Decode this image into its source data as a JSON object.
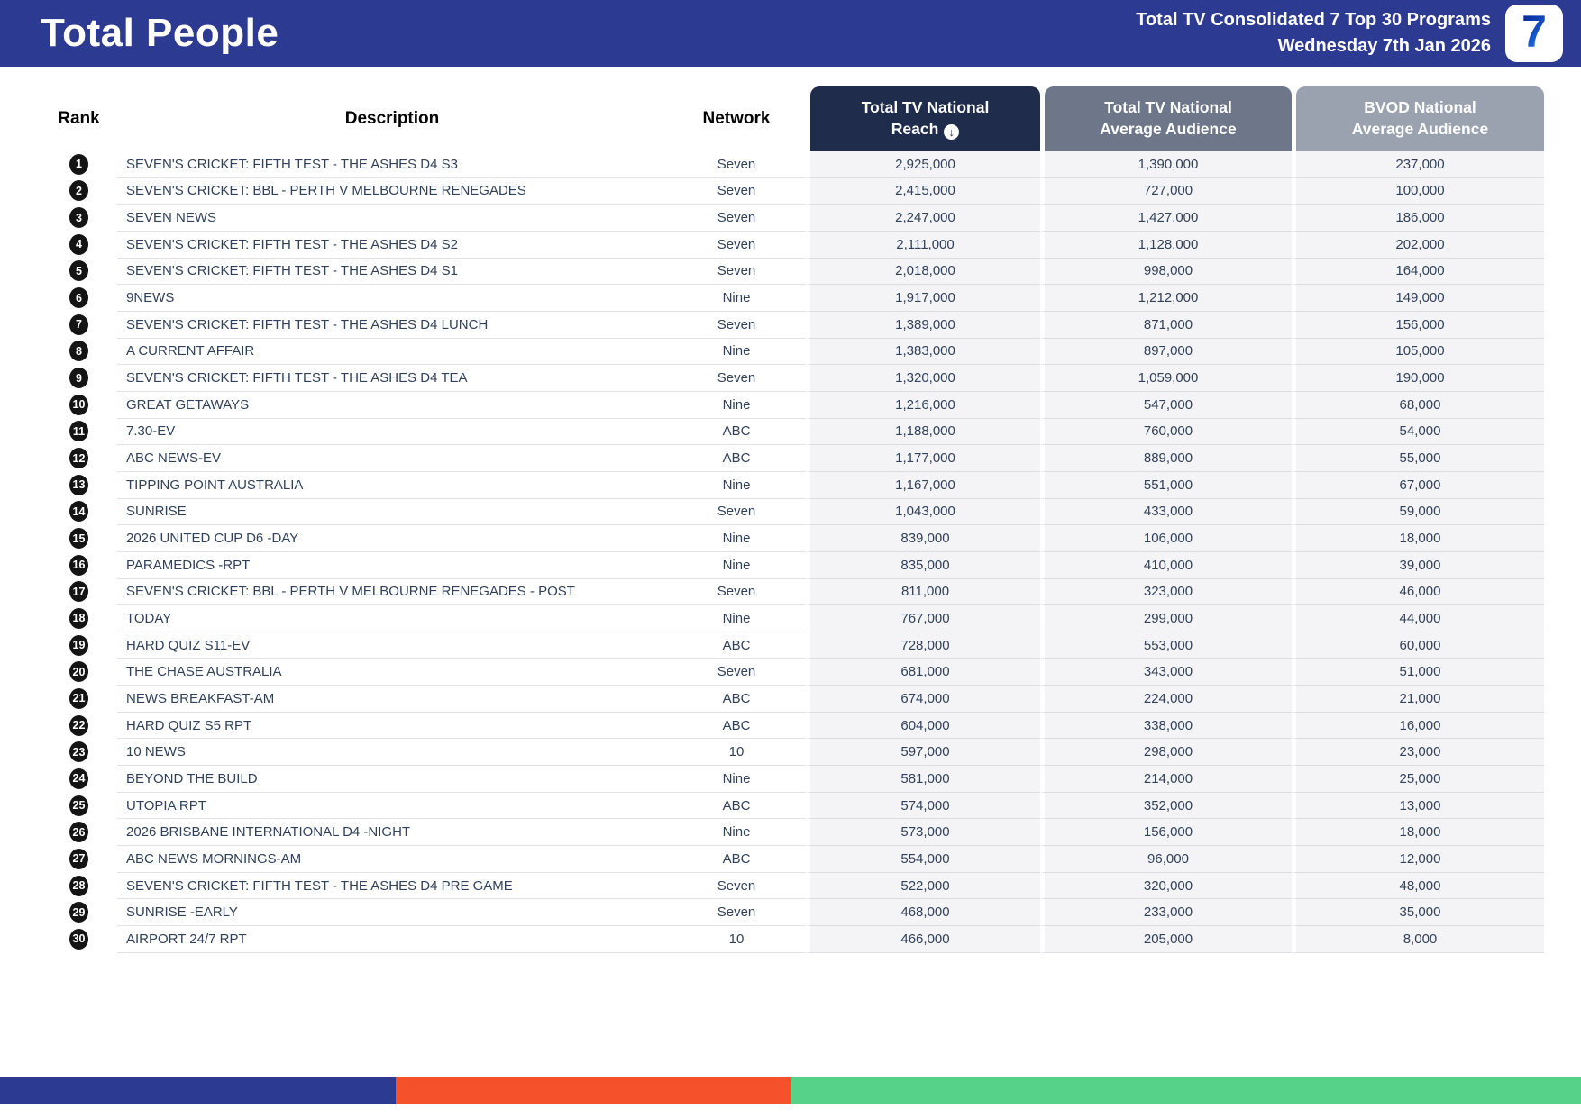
{
  "header": {
    "title": "Total People",
    "report_title": "Total TV Consolidated 7 Top 30 Programs",
    "report_date": "Wednesday 7th Jan 2026",
    "logo_text": "7"
  },
  "table": {
    "columns": {
      "rank": "Rank",
      "description": "Description",
      "network": "Network",
      "reach_line1": "Total TV National",
      "reach_line2": "Reach",
      "avg_line1": "Total TV National",
      "avg_line2": "Average Audience",
      "bvod_line1": "BVOD National",
      "bvod_line2": "Average Audience"
    },
    "sort_icon": "down-arrow-in-circle",
    "sort_glyph": "↓",
    "rows": [
      {
        "rank": "1",
        "description": "SEVEN'S CRICKET: FIFTH TEST - THE ASHES D4 S3",
        "network": "Seven",
        "reach": "2,925,000",
        "avg": "1,390,000",
        "bvod": "237,000"
      },
      {
        "rank": "2",
        "description": "SEVEN'S CRICKET: BBL - PERTH V MELBOURNE RENEGADES",
        "network": "Seven",
        "reach": "2,415,000",
        "avg": "727,000",
        "bvod": "100,000"
      },
      {
        "rank": "3",
        "description": "SEVEN NEWS",
        "network": "Seven",
        "reach": "2,247,000",
        "avg": "1,427,000",
        "bvod": "186,000"
      },
      {
        "rank": "4",
        "description": "SEVEN'S CRICKET: FIFTH TEST - THE ASHES D4 S2",
        "network": "Seven",
        "reach": "2,111,000",
        "avg": "1,128,000",
        "bvod": "202,000"
      },
      {
        "rank": "5",
        "description": "SEVEN'S CRICKET: FIFTH TEST - THE ASHES D4 S1",
        "network": "Seven",
        "reach": "2,018,000",
        "avg": "998,000",
        "bvod": "164,000"
      },
      {
        "rank": "6",
        "description": "9NEWS",
        "network": "Nine",
        "reach": "1,917,000",
        "avg": "1,212,000",
        "bvod": "149,000"
      },
      {
        "rank": "7",
        "description": "SEVEN'S CRICKET: FIFTH TEST - THE ASHES D4 LUNCH",
        "network": "Seven",
        "reach": "1,389,000",
        "avg": "871,000",
        "bvod": "156,000"
      },
      {
        "rank": "8",
        "description": "A CURRENT AFFAIR",
        "network": "Nine",
        "reach": "1,383,000",
        "avg": "897,000",
        "bvod": "105,000"
      },
      {
        "rank": "9",
        "description": "SEVEN'S CRICKET: FIFTH TEST - THE ASHES D4 TEA",
        "network": "Seven",
        "reach": "1,320,000",
        "avg": "1,059,000",
        "bvod": "190,000"
      },
      {
        "rank": "10",
        "description": "GREAT GETAWAYS",
        "network": "Nine",
        "reach": "1,216,000",
        "avg": "547,000",
        "bvod": "68,000"
      },
      {
        "rank": "11",
        "description": "7.30-EV",
        "network": "ABC",
        "reach": "1,188,000",
        "avg": "760,000",
        "bvod": "54,000"
      },
      {
        "rank": "12",
        "description": "ABC NEWS-EV",
        "network": "ABC",
        "reach": "1,177,000",
        "avg": "889,000",
        "bvod": "55,000"
      },
      {
        "rank": "13",
        "description": "TIPPING POINT AUSTRALIA",
        "network": "Nine",
        "reach": "1,167,000",
        "avg": "551,000",
        "bvod": "67,000"
      },
      {
        "rank": "14",
        "description": "SUNRISE",
        "network": "Seven",
        "reach": "1,043,000",
        "avg": "433,000",
        "bvod": "59,000"
      },
      {
        "rank": "15",
        "description": "2026 UNITED CUP D6 -DAY",
        "network": "Nine",
        "reach": "839,000",
        "avg": "106,000",
        "bvod": "18,000"
      },
      {
        "rank": "16",
        "description": "PARAMEDICS -RPT",
        "network": "Nine",
        "reach": "835,000",
        "avg": "410,000",
        "bvod": "39,000"
      },
      {
        "rank": "17",
        "description": "SEVEN'S CRICKET: BBL - PERTH V MELBOURNE RENEGADES - POST",
        "network": "Seven",
        "reach": "811,000",
        "avg": "323,000",
        "bvod": "46,000"
      },
      {
        "rank": "18",
        "description": "TODAY",
        "network": "Nine",
        "reach": "767,000",
        "avg": "299,000",
        "bvod": "44,000"
      },
      {
        "rank": "19",
        "description": "HARD QUIZ S11-EV",
        "network": "ABC",
        "reach": "728,000",
        "avg": "553,000",
        "bvod": "60,000"
      },
      {
        "rank": "20",
        "description": "THE CHASE AUSTRALIA",
        "network": "Seven",
        "reach": "681,000",
        "avg": "343,000",
        "bvod": "51,000"
      },
      {
        "rank": "21",
        "description": "NEWS BREAKFAST-AM",
        "network": "ABC",
        "reach": "674,000",
        "avg": "224,000",
        "bvod": "21,000"
      },
      {
        "rank": "22",
        "description": "HARD QUIZ S5 RPT",
        "network": "ABC",
        "reach": "604,000",
        "avg": "338,000",
        "bvod": "16,000"
      },
      {
        "rank": "23",
        "description": "10 NEWS",
        "network": "10",
        "reach": "597,000",
        "avg": "298,000",
        "bvod": "23,000"
      },
      {
        "rank": "24",
        "description": "BEYOND THE BUILD",
        "network": "Nine",
        "reach": "581,000",
        "avg": "214,000",
        "bvod": "25,000"
      },
      {
        "rank": "25",
        "description": "UTOPIA RPT",
        "network": "ABC",
        "reach": "574,000",
        "avg": "352,000",
        "bvod": "13,000"
      },
      {
        "rank": "26",
        "description": "2026 BRISBANE INTERNATIONAL D4 -NIGHT",
        "network": "Nine",
        "reach": "573,000",
        "avg": "156,000",
        "bvod": "18,000"
      },
      {
        "rank": "27",
        "description": "ABC NEWS MORNINGS-AM",
        "network": "ABC",
        "reach": "554,000",
        "avg": "96,000",
        "bvod": "12,000"
      },
      {
        "rank": "28",
        "description": "SEVEN'S CRICKET: FIFTH TEST - THE ASHES D4 PRE GAME",
        "network": "Seven",
        "reach": "522,000",
        "avg": "320,000",
        "bvod": "48,000"
      },
      {
        "rank": "29",
        "description": "SUNRISE -EARLY",
        "network": "Seven",
        "reach": "468,000",
        "avg": "233,000",
        "bvod": "35,000"
      },
      {
        "rank": "30",
        "description": "AIRPORT 24/7 RPT",
        "network": "10",
        "reach": "466,000",
        "avg": "205,000",
        "bvod": "8,000"
      }
    ]
  },
  "colors": {
    "banner_bg": "#2d3a92",
    "reach_header_bg": "#1f2c4c",
    "avg_header_bg": "#6d7789",
    "bvod_header_bg": "#9aa2b0",
    "value_cell_bg": "#f4f4f6",
    "data_text": "#31415a",
    "rank_circle_bg": "#141414"
  },
  "footer_bar": {
    "segments": [
      {
        "name": "blue-segment",
        "color": "#2d3a92",
        "width_pct": 25
      },
      {
        "name": "orange-segment",
        "color": "#f5512b",
        "width_pct": 25
      },
      {
        "name": "green-segment",
        "color": "#57d289",
        "width_pct": 50
      }
    ]
  }
}
